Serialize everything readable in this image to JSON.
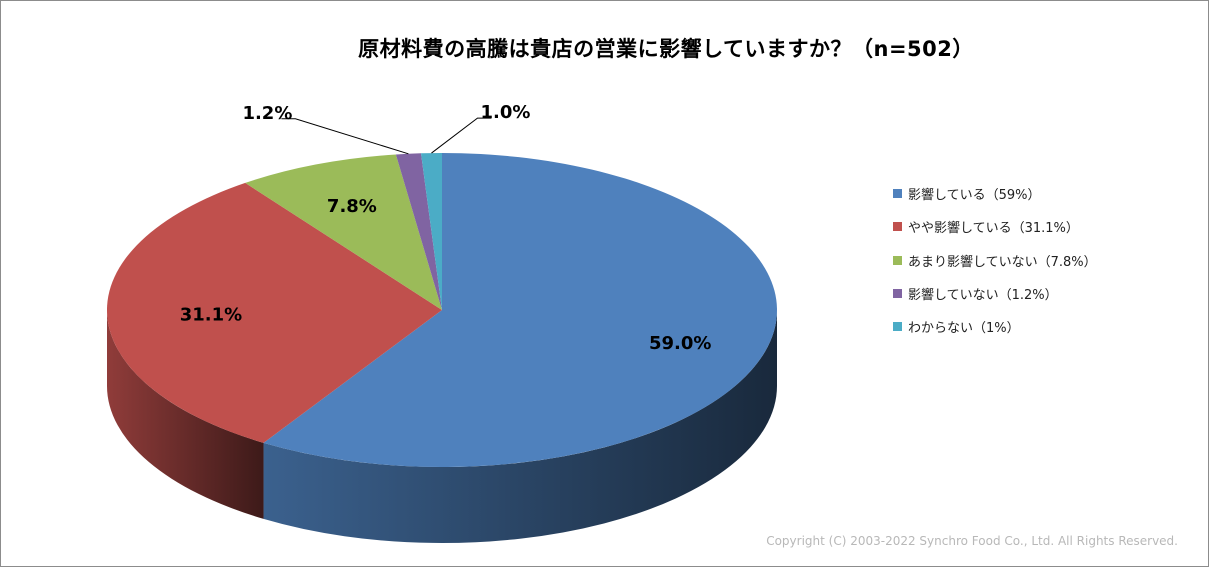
{
  "chart_data": {
    "type": "pie",
    "title": "原材料費の高騰は貴店の営業に影響していますか？（n=502）",
    "slices": [
      {
        "label": "影響している（59%）",
        "value": 59.0,
        "data_label": "59.0%",
        "color": "#4f81bd"
      },
      {
        "label": "やや影響している（31.1%）",
        "value": 31.1,
        "data_label": "31.1%",
        "color": "#c0504d"
      },
      {
        "label": "あまり影響していない（7.8%）",
        "value": 7.8,
        "data_label": "7.8%",
        "color": "#9bbb59"
      },
      {
        "label": "影響していない（1.2%）",
        "value": 1.2,
        "data_label": "1.2%",
        "color": "#8064a2"
      },
      {
        "label": "わからない（1%）",
        "value": 1.0,
        "data_label": "1.0%",
        "color": "#4bacc6"
      }
    ],
    "legend_position": "right",
    "style": "3d"
  },
  "copyright": "Copyright (C) 2003-2022   Synchro Food Co., Ltd. All Rights Reserved."
}
